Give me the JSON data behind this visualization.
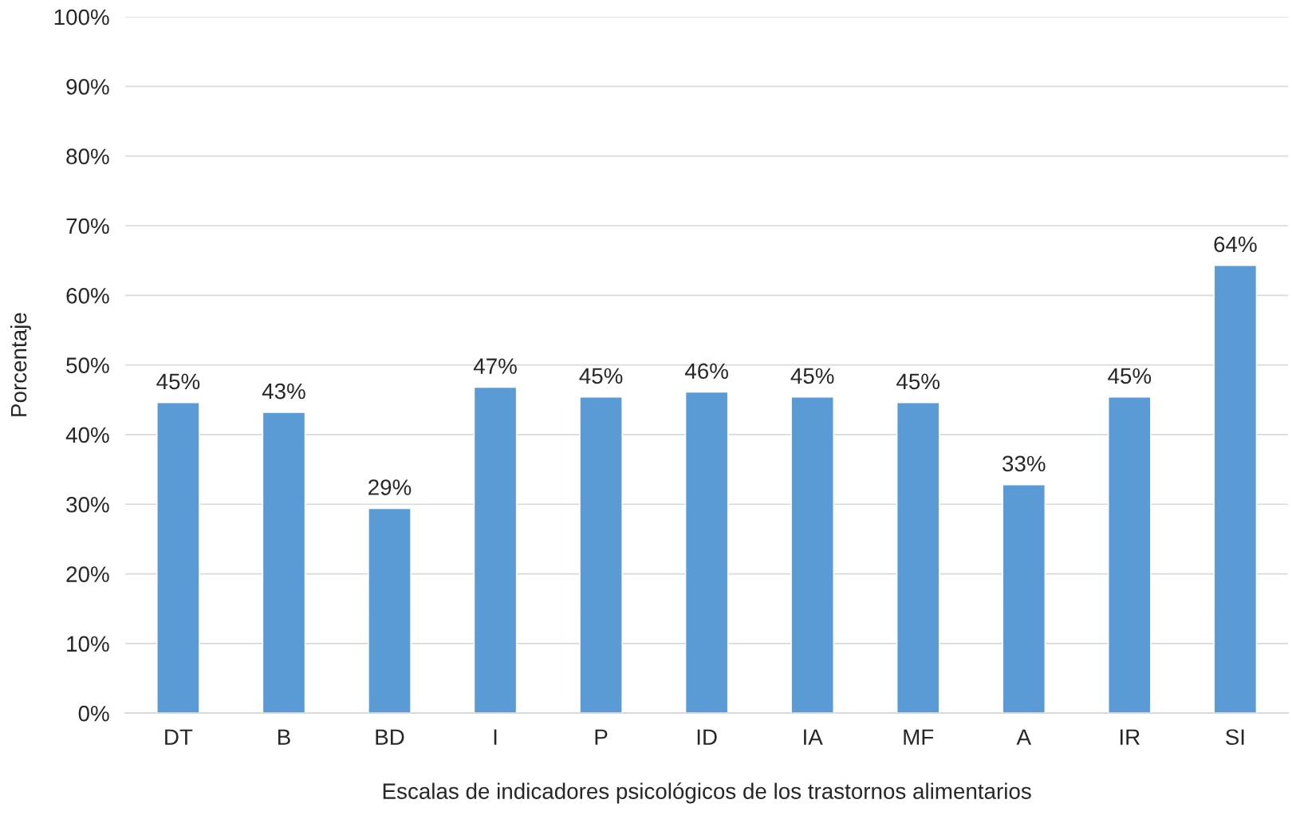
{
  "chart_data": {
    "type": "bar",
    "xlabel": "Escalas de indicadores psicológicos de los trastornos alimentarios",
    "ylabel": "Porcentaje",
    "categories": [
      "DT",
      "B",
      "BD",
      "I",
      "P",
      "ID",
      "IA",
      "MF",
      "A",
      "IR",
      "SI"
    ],
    "values": [
      44.6,
      43.2,
      29.4,
      46.8,
      45.4,
      46.1,
      45.4,
      44.6,
      32.8,
      45.4,
      64.3
    ],
    "value_labels": [
      "45%",
      "43%",
      "29%",
      "47%",
      "45%",
      "46%",
      "45%",
      "45%",
      "33%",
      "45%",
      "64%"
    ],
    "color": "#5b9bd5",
    "ylim": [
      0,
      100
    ],
    "yticks": [
      {
        "value": 0,
        "label": "0%"
      },
      {
        "value": 10,
        "label": "10%"
      },
      {
        "value": 20,
        "label": "20%"
      },
      {
        "value": 30,
        "label": "30%"
      },
      {
        "value": 40,
        "label": "40%"
      },
      {
        "value": 50,
        "label": "50%"
      },
      {
        "value": 60,
        "label": "60%"
      },
      {
        "value": 70,
        "label": "70%"
      },
      {
        "value": 80,
        "label": "80%"
      },
      {
        "value": 90,
        "label": "90%"
      },
      {
        "value": 100,
        "label": "100%"
      }
    ],
    "grid": "y"
  }
}
